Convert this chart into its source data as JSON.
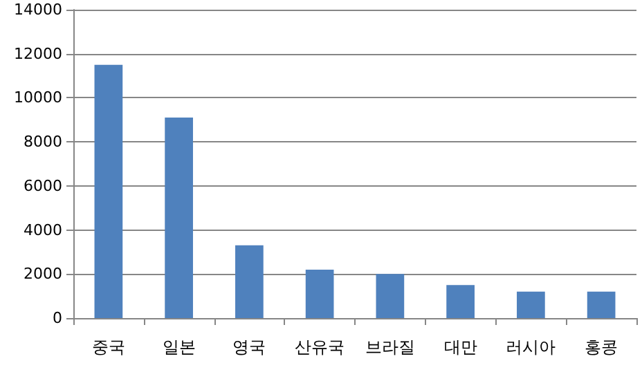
{
  "chart_data": {
    "type": "bar",
    "categories": [
      "중국",
      "일본",
      "영국",
      "산유국",
      "브라질",
      "대만",
      "러시아",
      "홍콩"
    ],
    "values": [
      11500,
      9100,
      3300,
      2200,
      2000,
      1500,
      1200,
      1200
    ],
    "color": "#4f81bd",
    "ylim": [
      0,
      14000
    ],
    "yticks": [
      0,
      2000,
      4000,
      6000,
      8000,
      10000,
      12000,
      14000
    ],
    "grid": "y"
  }
}
